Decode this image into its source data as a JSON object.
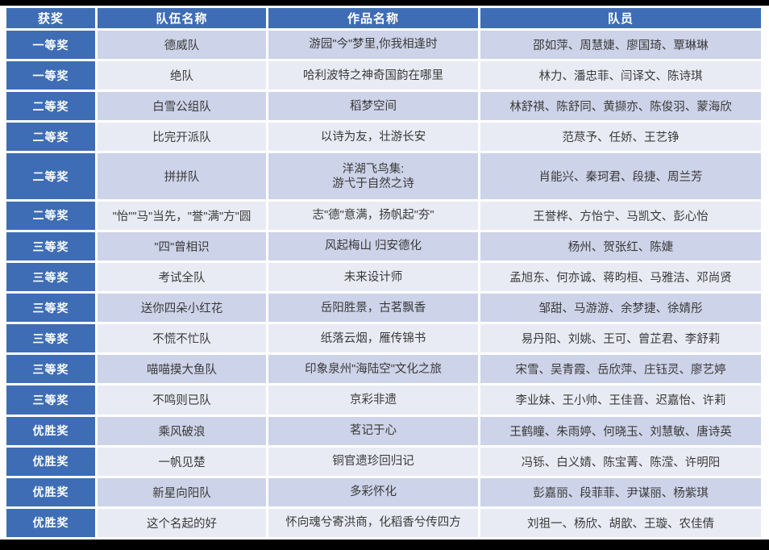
{
  "colors": {
    "accent_blue": "#3E6DB5",
    "band_dark": "#CDD3E8",
    "band_light": "#E9EBF4",
    "grid_white": "#FFFFFF",
    "body_text": "#3A3A3A",
    "header_text": "#FFFFFF",
    "frame_black": "#000000"
  },
  "table": {
    "columns": [
      {
        "label": "获奖"
      },
      {
        "label": "队伍名称"
      },
      {
        "label": "作品名称"
      },
      {
        "label": "队员"
      }
    ],
    "rows": [
      {
        "award": "一等奖",
        "team": "德威队",
        "work": "游园\"今\"梦里,你我相逢时",
        "members": "邵如萍、周慧婕、廖国琦、覃琳琳"
      },
      {
        "award": "一等奖",
        "team": "绝队",
        "work": "哈利波特之神奇国韵在哪里",
        "members": "林力、潘忠菲、闫译文、陈诗琪"
      },
      {
        "award": "二等奖",
        "team": "白雪公组队",
        "work": "稻梦空间",
        "members": "林舒祺、陈舒同、黄撷亦、陈俊羽、蒙海欣"
      },
      {
        "award": "二等奖",
        "team": "比完开派队",
        "work": "以诗为友，壮游长安",
        "members": "范荩予、任娇、王艺铮"
      },
      {
        "award": "二等奖",
        "team": "拼拼队",
        "work": "洋湖飞鸟集:\n游弋于自然之诗",
        "members": "肖能兴、秦珂君、段捷、周兰芳"
      },
      {
        "award": "二等奖",
        "team": "\"怡\"\"马\"当先，\"誉\"满\"方\"圆",
        "work": "志\"德\"意满，扬帆起\"夯\"",
        "members": "王誉桦、方怡宁、马凯文、彭心怡"
      },
      {
        "award": "三等奖",
        "team": "\"四\"曾相识",
        "work": "风起梅山 归安德化",
        "members": "杨州、贺张红、陈婕"
      },
      {
        "award": "三等奖",
        "team": "考试全队",
        "work": "未来设计师",
        "members": "孟旭东、何亦诚、蒋昀桓、马雅洁、邓尚贤"
      },
      {
        "award": "三等奖",
        "team": "送你四朵小红花",
        "work": "岳阳胜景，古茗飘香",
        "members": "邹甜、马游游、余梦捷、徐婧彤"
      },
      {
        "award": "三等奖",
        "team": "不慌不忙队",
        "work": "纸落云烟，雁传锦书",
        "members": "易丹阳、刘姚、王可、曾芷君、李舒莉"
      },
      {
        "award": "三等奖",
        "team": "喵喵摸大鱼队",
        "work": "印象泉州\"海陆空\"文化之旅",
        "members": "宋雪、吴青霞、岳欣萍、庄钰灵、廖艺婷"
      },
      {
        "award": "三等奖",
        "team": "不鸣则已队",
        "work": "京彩非遗",
        "members": "李业妹、王小帅、王佳音、迟嘉怡、许莉"
      },
      {
        "award": "优胜奖",
        "team": "乘风破浪",
        "work": "茗记于心",
        "members": "王鹤瞳、朱雨婷、何晓玉、刘慧敏、唐诗英"
      },
      {
        "award": "优胜奖",
        "team": "一帆见楚",
        "work": "铜官遗珍回归记",
        "members": "冯铄、白义婧、陈宝菁、陈滢、许明阳"
      },
      {
        "award": "优胜奖",
        "team": "新星向阳队",
        "work": "多彩怀化",
        "members": "彭嘉丽、段菲菲、尹谋丽、杨紫琪"
      },
      {
        "award": "优胜奖",
        "team": "这个名起的好",
        "work": "怀向魂兮寄洪商，化稻香兮传四方",
        "members": "刘祖一、杨欣、胡歆、王璇、农佳倩"
      }
    ]
  }
}
